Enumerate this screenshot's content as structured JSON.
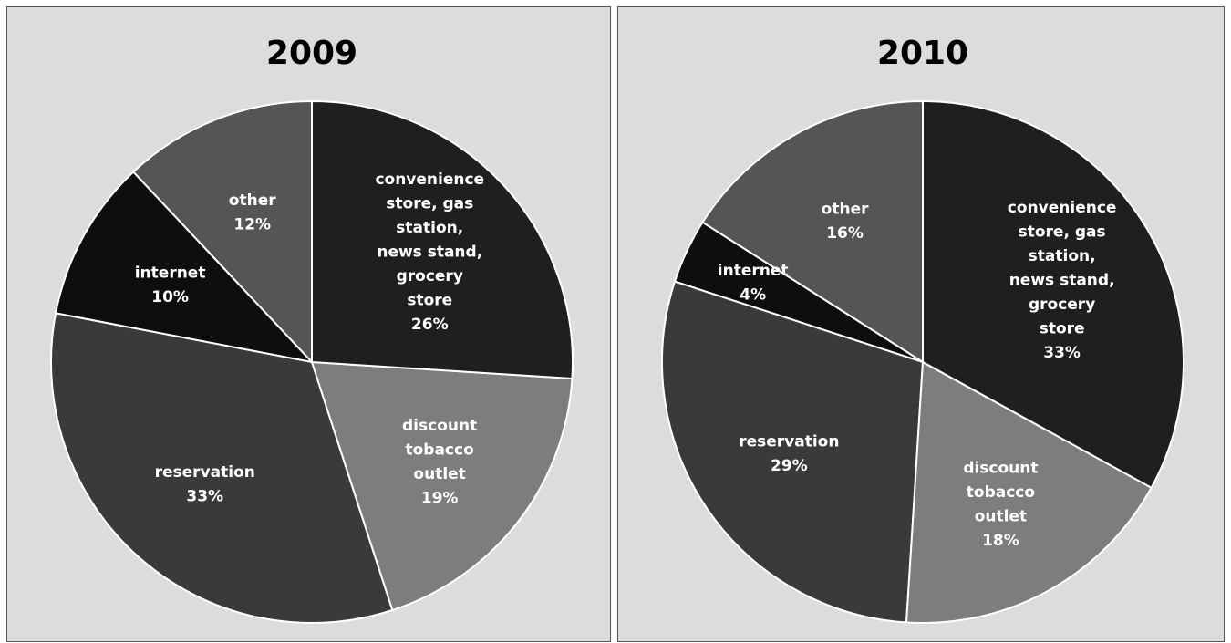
{
  "chart_data": [
    {
      "type": "pie",
      "title": "2009",
      "start_angle_deg": 0,
      "slices": [
        {
          "label": [
            "convenience",
            "store, gas",
            "station,",
            "news stand,",
            "grocery",
            "store"
          ],
          "value": 26,
          "display": "26%",
          "color": "#1f1f1f"
        },
        {
          "label": [
            "discount",
            "tobacco",
            "outlet"
          ],
          "value": 19,
          "display": "19%",
          "color": "#7d7d7d"
        },
        {
          "label": [
            "reservation"
          ],
          "value": 33,
          "display": "33%",
          "color": "#3a3a3a"
        },
        {
          "label": [
            "internet"
          ],
          "value": 10,
          "display": "10%",
          "color": "#0e0e0e"
        },
        {
          "label": [
            "other"
          ],
          "value": 12,
          "display": "12%",
          "color": "#555555"
        }
      ]
    },
    {
      "type": "pie",
      "title": "2010",
      "start_angle_deg": 0,
      "slices": [
        {
          "label": [
            "convenience",
            "store, gas",
            "station,",
            "news stand,",
            "grocery",
            "store"
          ],
          "value": 33,
          "display": "33%",
          "color": "#1f1f1f"
        },
        {
          "label": [
            "discount",
            "tobacco",
            "outlet"
          ],
          "value": 18,
          "display": "18%",
          "color": "#7d7d7d"
        },
        {
          "label": [
            "reservation"
          ],
          "value": 29,
          "display": "29%",
          "color": "#3a3a3a"
        },
        {
          "label": [
            "internet"
          ],
          "value": 4,
          "display": "4%",
          "color": "#0e0e0e"
        },
        {
          "label": [
            "other"
          ],
          "value": 16,
          "display": "16%",
          "color": "#555555"
        }
      ]
    }
  ]
}
